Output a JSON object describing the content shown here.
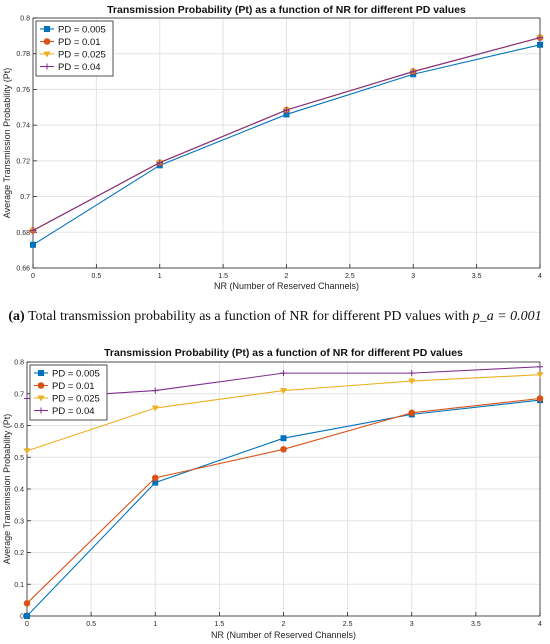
{
  "caption": {
    "label": "(a)",
    "text": "Total transmission probability as a function of NR for different PD values with",
    "math": "p_a = 0.001"
  },
  "chart_data": [
    {
      "type": "line",
      "title": "Transmission Probability (Pt) as a function of NR for different PD values",
      "xlabel": "NR (Number of Reserved Channels)",
      "ylabel": "Average Transmission Probability (Pt)",
      "xlim": [
        0,
        4
      ],
      "ylim": [
        0.66,
        0.8
      ],
      "xticks": [
        "0",
        "0.5",
        "1",
        "1.5",
        "2",
        "2.5",
        "3",
        "3.5",
        "4"
      ],
      "yticks": [
        "0.66",
        "0.68",
        "0.7",
        "0.72",
        "0.74",
        "0.76",
        "0.78",
        "0.8"
      ],
      "grid": true,
      "legend": "top-left",
      "x": [
        0,
        1,
        2,
        3,
        4
      ],
      "series": [
        {
          "name": "PD = 0.005",
          "values": [
            0.673,
            0.7175,
            0.746,
            0.7685,
            0.785
          ],
          "color": "#0072BD",
          "marker": "square"
        },
        {
          "name": "PD = 0.01",
          "values": [
            0.681,
            0.719,
            0.7485,
            0.77,
            0.789
          ],
          "color": "#D95319",
          "marker": "circle"
        },
        {
          "name": "PD = 0.025",
          "values": [
            0.681,
            0.719,
            0.7485,
            0.77,
            0.789
          ],
          "color": "#EDB120",
          "marker": "triangle"
        },
        {
          "name": "PD = 0.04",
          "values": [
            0.681,
            0.719,
            0.7485,
            0.77,
            0.789
          ],
          "color": "#7E2F8E",
          "marker": "plus"
        }
      ]
    },
    {
      "type": "line",
      "title": "Transmission Probability (Pt) as a function of NR for different PD values",
      "xlabel": "NR (Number of Reserved Channels)",
      "ylabel": "Average Transmission Probability (Pt)",
      "xlim": [
        0,
        4
      ],
      "ylim": [
        0,
        0.8
      ],
      "xticks": [
        "0",
        "0.5",
        "1",
        "1.5",
        "2",
        "2.5",
        "3",
        "3.5",
        "4"
      ],
      "yticks": [
        "0",
        "0.1",
        "0.2",
        "0.3",
        "0.4",
        "0.5",
        "0.6",
        "0.7",
        "0.8"
      ],
      "grid": true,
      "legend": "top-left",
      "x": [
        0,
        1,
        2,
        3,
        4
      ],
      "series": [
        {
          "name": "PD = 0.005",
          "values": [
            0.0,
            0.42,
            0.56,
            0.635,
            0.68
          ],
          "color": "#0072BD",
          "marker": "square"
        },
        {
          "name": "PD = 0.01",
          "values": [
            0.04,
            0.435,
            0.525,
            0.64,
            0.685
          ],
          "color": "#D95319",
          "marker": "circle"
        },
        {
          "name": "PD = 0.025",
          "values": [
            0.52,
            0.655,
            0.71,
            0.74,
            0.76
          ],
          "color": "#EDB120",
          "marker": "triangle"
        },
        {
          "name": "PD = 0.04",
          "values": [
            0.685,
            0.71,
            0.765,
            0.765,
            0.785
          ],
          "color": "#7E2F8E",
          "marker": "plus"
        }
      ]
    }
  ]
}
